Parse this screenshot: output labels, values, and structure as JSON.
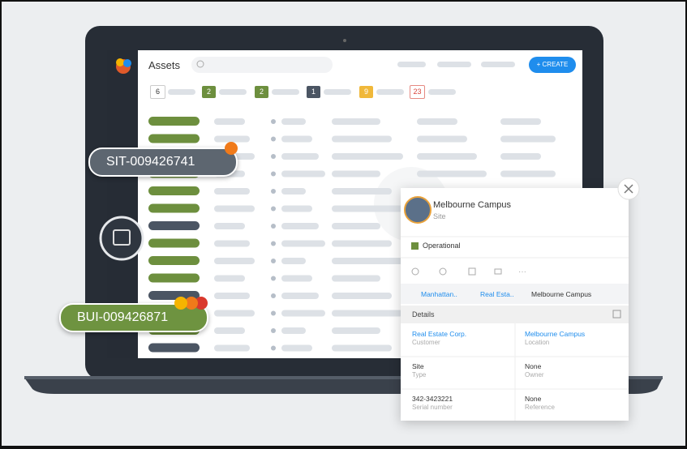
{
  "app": {
    "title": "Assets",
    "create_button": "+ CREATE",
    "filters": [
      "6",
      "2",
      "2",
      "1",
      "9",
      "23"
    ]
  },
  "tags": {
    "site": "SIT-009426741",
    "building": "BUI-009426871"
  },
  "card": {
    "name": "Melbourne Campus",
    "kind": "Site",
    "status": "Operational",
    "breadcrumb": [
      "Manhattan..",
      "Real Esta..",
      "Melbourne Campus"
    ],
    "section": "Details",
    "fields": [
      [
        "Real Estate Corp.",
        "Customer"
      ],
      [
        "Melbourne Campus",
        "Location"
      ],
      [
        "Site",
        "Type"
      ],
      [
        "None",
        "Owner"
      ],
      [
        "342-3423221",
        "Serial number"
      ],
      [
        "None",
        "Reference"
      ]
    ]
  }
}
